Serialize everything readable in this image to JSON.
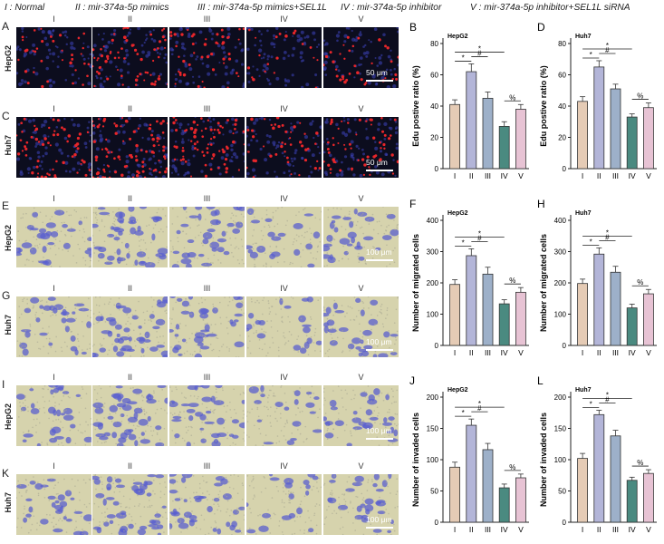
{
  "legend": [
    "I : Normal",
    "II : mir-374a-5p mimics",
    "III : mir-374a-5p mimics+SEL1L",
    "IV : mir-374a-5p inhibitor",
    "V : mir-374a-5p inhibitor+SEL1L siRNA"
  ],
  "groups": [
    "I",
    "II",
    "III",
    "IV",
    "V"
  ],
  "image_rows": [
    {
      "panel": "A",
      "cell_line": "HepG2",
      "stain": "edu",
      "scale_bar": "50 μm"
    },
    {
      "panel": "C",
      "cell_line": "Huh7",
      "stain": "edu",
      "scale_bar": "50 μm"
    },
    {
      "panel": "E",
      "cell_line": "HepG2",
      "stain": "crystal",
      "scale_bar": "100 μm"
    },
    {
      "panel": "G",
      "cell_line": "Huh7",
      "stain": "crystal",
      "scale_bar": "100 μm"
    },
    {
      "panel": "I",
      "cell_line": "HepG2",
      "stain": "crystal",
      "scale_bar": "100 μm"
    },
    {
      "panel": "K",
      "cell_line": "Huh7",
      "stain": "crystal",
      "scale_bar": "100 μm"
    }
  ],
  "significance": {
    "star": "*",
    "hash": "#",
    "percent": "%"
  },
  "colors": {
    "edu_background": "#0c0d1e",
    "edu_cell": "#e8262a",
    "edu_nucleus": "#3a3fb0",
    "membrane_background": "#d6d3ad",
    "membrane_cell": "#5a5fcf",
    "bars": [
      "#e5cbb5",
      "#b3b5d8",
      "#9db0c9",
      "#4a8a80",
      "#e7c3d4"
    ]
  },
  "chart_data": [
    {
      "panel": "B",
      "type": "bar",
      "title": "HepG2",
      "ylabel": "Edu postive ratio (%)",
      "categories": [
        "I",
        "II",
        "III",
        "IV",
        "V"
      ],
      "values": [
        41,
        62,
        45,
        27,
        38
      ],
      "errors": [
        3,
        5,
        4,
        3,
        3
      ],
      "ylim": [
        0,
        80
      ],
      "yticks": [
        0,
        20,
        40,
        60,
        80
      ]
    },
    {
      "panel": "D",
      "type": "bar",
      "title": "Huh7",
      "ylabel": "Edu postive ratio (%)",
      "categories": [
        "I",
        "II",
        "III",
        "IV",
        "V"
      ],
      "values": [
        43,
        65,
        51,
        33,
        39
      ],
      "errors": [
        3,
        4,
        3,
        2,
        3
      ],
      "ylim": [
        0,
        80
      ],
      "yticks": [
        0,
        20,
        40,
        60,
        80
      ]
    },
    {
      "panel": "F",
      "type": "bar",
      "title": "HepG2",
      "ylabel": "Number of migrated cells",
      "categories": [
        "I",
        "II",
        "III",
        "IV",
        "V"
      ],
      "values": [
        195,
        287,
        228,
        133,
        170
      ],
      "errors": [
        15,
        22,
        22,
        13,
        15
      ],
      "ylim": [
        0,
        400
      ],
      "yticks": [
        0,
        100,
        200,
        300,
        400
      ]
    },
    {
      "panel": "H",
      "type": "bar",
      "title": "Huh7",
      "ylabel": "Number of migrated cells",
      "categories": [
        "I",
        "II",
        "III",
        "IV",
        "V"
      ],
      "values": [
        198,
        292,
        234,
        120,
        165
      ],
      "errors": [
        14,
        20,
        19,
        12,
        14
      ],
      "ylim": [
        0,
        400
      ],
      "yticks": [
        0,
        100,
        200,
        300,
        400
      ]
    },
    {
      "panel": "J",
      "type": "bar",
      "title": "HepG2",
      "ylabel": "Number of invaded cells",
      "categories": [
        "I",
        "II",
        "III",
        "IV",
        "V"
      ],
      "values": [
        88,
        155,
        116,
        55,
        71
      ],
      "errors": [
        8,
        10,
        10,
        6,
        6
      ],
      "ylim": [
        0,
        200
      ],
      "yticks": [
        0,
        50,
        100,
        150,
        200
      ]
    },
    {
      "panel": "L",
      "type": "bar",
      "title": "Huh7",
      "ylabel": "Number of invaded cells",
      "categories": [
        "I",
        "II",
        "III",
        "IV",
        "V"
      ],
      "values": [
        102,
        172,
        138,
        67,
        78
      ],
      "errors": [
        8,
        7,
        9,
        5,
        6
      ],
      "ylim": [
        0,
        200
      ],
      "yticks": [
        0,
        50,
        100,
        150,
        200
      ]
    }
  ]
}
